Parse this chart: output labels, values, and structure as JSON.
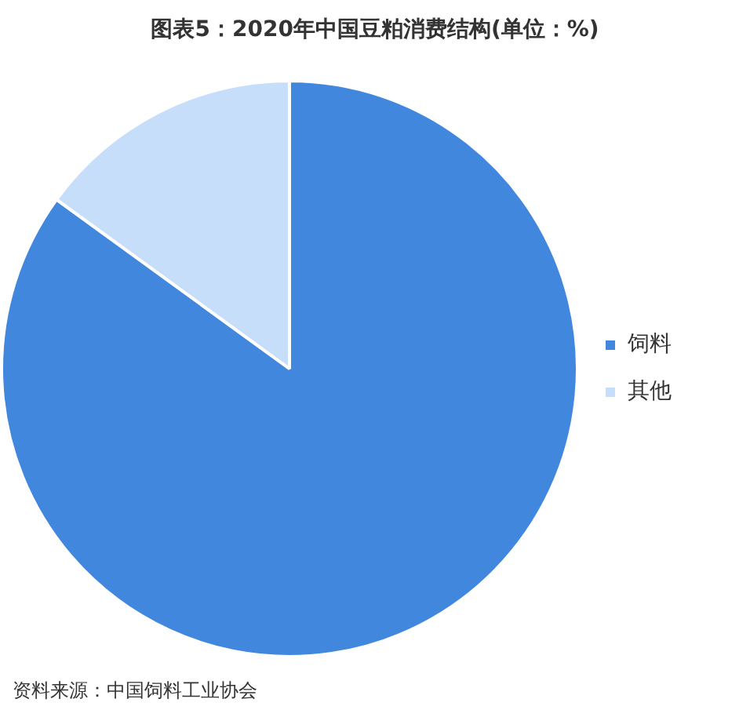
{
  "chart_data": {
    "type": "pie",
    "title": "图表5：2020年中国豆粕消费结构(单位：%)",
    "categories": [
      "饲料",
      "其他"
    ],
    "values": [
      85,
      15
    ],
    "colors": [
      "#4187de",
      "#c6defa"
    ],
    "legend": "right",
    "annotations": [
      "资料来源：中国饲料工业协会"
    ]
  }
}
